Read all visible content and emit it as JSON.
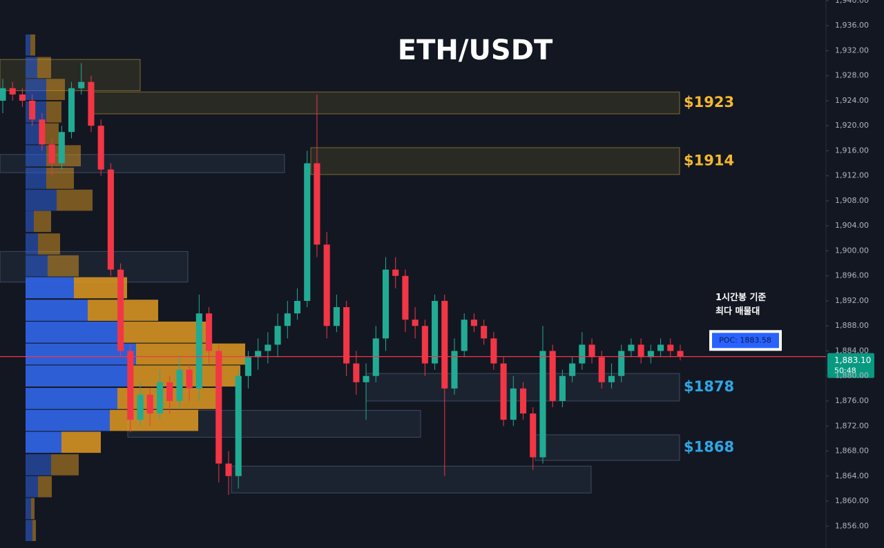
{
  "chart_data": {
    "type": "candlestick",
    "title": "ETH/USDT",
    "open": [
      1924,
      1926,
      1925,
      1924,
      1921,
      1917,
      1914,
      1919,
      1926,
      1927,
      1920,
      1913,
      1897,
      1884,
      1873,
      1877,
      1874,
      1879,
      1876,
      1881,
      1878,
      1890,
      1884,
      1866,
      1864,
      1880,
      1883,
      1884,
      1885,
      1888,
      1890,
      1892,
      1914,
      1901,
      1888,
      1891,
      1882,
      1879,
      1880,
      1886,
      1897,
      1896,
      1889,
      1888,
      1882,
      1892,
      1878,
      1884,
      1889,
      1888,
      1886,
      1882,
      1873,
      1878,
      1874,
      1867,
      1884,
      1876,
      1880,
      1882,
      1885,
      1883,
      1879,
      1880,
      1884,
      1885,
      1883,
      1884,
      1885,
      1884
    ],
    "high": [
      1927.5,
      1927,
      1926,
      1925,
      1922,
      1918,
      1920,
      1927,
      1930,
      1928,
      1921,
      1914,
      1898,
      1885,
      1879,
      1878,
      1881,
      1880,
      1883,
      1882,
      1893,
      1891,
      1885,
      1868,
      1881,
      1884,
      1886,
      1887,
      1890,
      1892,
      1894,
      1916,
      1925,
      1903,
      1893,
      1892,
      1884,
      1882,
      1888,
      1899,
      1899,
      1897,
      1891,
      1889,
      1893,
      1893,
      1886,
      1890,
      1890,
      1889,
      1887,
      1883,
      1880,
      1879,
      1875,
      1888,
      1885,
      1881,
      1883,
      1887,
      1886,
      1884,
      1882,
      1885,
      1886,
      1886,
      1885,
      1886,
      1886,
      1885
    ],
    "low": [
      1922,
      1924,
      1923,
      1920,
      1916,
      1912,
      1913,
      1918,
      1925,
      1919,
      1912,
      1896,
      1883,
      1871,
      1872,
      1872,
      1873,
      1874,
      1875,
      1876,
      1876,
      1882,
      1863,
      1861,
      1862,
      1878,
      1881,
      1882,
      1883,
      1886,
      1889,
      1891,
      1899,
      1886,
      1887,
      1880,
      1877,
      1873,
      1879,
      1884,
      1894,
      1887,
      1886,
      1880,
      1881,
      1864,
      1877,
      1883,
      1887,
      1885,
      1881,
      1872,
      1872,
      1873,
      1865,
      1866,
      1875,
      1875,
      1879,
      1881,
      1882,
      1878,
      1878,
      1879,
      1883,
      1882,
      1882,
      1883,
      1883,
      1882.5
    ],
    "close": [
      1926,
      1925,
      1924,
      1921,
      1917,
      1914,
      1919,
      1926,
      1927,
      1920,
      1913,
      1897,
      1884,
      1873,
      1877,
      1874,
      1879,
      1876,
      1881,
      1878,
      1890,
      1884,
      1866,
      1864,
      1880,
      1883,
      1884,
      1885,
      1888,
      1890,
      1892,
      1914,
      1901,
      1888,
      1891,
      1882,
      1879,
      1880,
      1886,
      1897,
      1896,
      1889,
      1888,
      1882,
      1892,
      1878,
      1884,
      1889,
      1888,
      1886,
      1882,
      1873,
      1878,
      1874,
      1867,
      1884,
      1876,
      1880,
      1882,
      1885,
      1883,
      1879,
      1880,
      1884,
      1885,
      1883,
      1884,
      1885,
      1884,
      1883.1
    ],
    "colors": {
      "up": "#22ab94",
      "down": "#f23645"
    },
    "ylim": [
      1852.5,
      1940.1
    ],
    "yticks": [
      {
        "value": 1856,
        "label": "1,856.00"
      },
      {
        "value": 1860,
        "label": "1,860.00"
      },
      {
        "value": 1864,
        "label": "1,864.00"
      },
      {
        "value": 1868,
        "label": "1,868.00"
      },
      {
        "value": 1872,
        "label": "1,872.00"
      },
      {
        "value": 1876,
        "label": "1,876.00"
      },
      {
        "value": 1880,
        "label": "1,880.00"
      },
      {
        "value": 1884,
        "label": "1,884.00"
      },
      {
        "value": 1888,
        "label": "1,888.00"
      },
      {
        "value": 1892,
        "label": "1,892.00"
      },
      {
        "value": 1896,
        "label": "1,896.00"
      },
      {
        "value": 1900,
        "label": "1,900.00"
      },
      {
        "value": 1904,
        "label": "1,904.00"
      },
      {
        "value": 1908,
        "label": "1,908.00"
      },
      {
        "value": 1912,
        "label": "1,912.00"
      },
      {
        "value": 1916,
        "label": "1,916.00"
      },
      {
        "value": 1920,
        "label": "1,920.00"
      },
      {
        "value": 1924,
        "label": "1,924.00"
      },
      {
        "value": 1928,
        "label": "1,928.00"
      },
      {
        "value": 1932,
        "label": "1,932.00"
      },
      {
        "value": 1936,
        "label": "1,936.00"
      },
      {
        "value": 1940,
        "label": "1,940.00"
      }
    ],
    "last_price": {
      "value": 1883.1,
      "label": "1,883.10",
      "color": "#089981"
    },
    "countdown": "50:48",
    "poc": {
      "value": 1883.58,
      "label": "POC: 1883.58",
      "color": "#2962ff"
    },
    "poc_note": [
      "1시간봉 기준",
      "최다 매물대"
    ],
    "zones": [
      {
        "low": 1921.9,
        "high": 1925.4,
        "label": "$1923",
        "color": "#c9a83a"
      },
      {
        "low": 1912.2,
        "high": 1916.5,
        "label": "$1914",
        "color": "#c9a83a"
      },
      {
        "low": 1876.0,
        "high": 1880.4,
        "label": "$1878",
        "color": "#5d7290"
      },
      {
        "low": 1866.5,
        "high": 1870.6,
        "label": "$1868",
        "color": "#5d7290"
      },
      {
        "low": 1925.6,
        "high": 1930.6,
        "color": "#c9a83a"
      },
      {
        "low": 1912.5,
        "high": 1915.4,
        "color": "#5d7290"
      },
      {
        "low": 1895.0,
        "high": 1899.9,
        "color": "#5d7290"
      },
      {
        "low": 1870.2,
        "high": 1874.5,
        "color": "#5d7290"
      },
      {
        "low": 1861.3,
        "high": 1865.6,
        "color": "#5d7290"
      }
    ],
    "volume_profile": {
      "levels": [
        1932.9,
        1929.3,
        1925.8,
        1922.2,
        1918.7,
        1915.2,
        1911.6,
        1908.1,
        1904.7,
        1901.1,
        1897.6,
        1894.1,
        1890.5,
        1887.0,
        1883.5,
        1880.0,
        1876.4,
        1872.9,
        1869.4,
        1865.8,
        1862.3,
        1858.8,
        1855.3
      ],
      "buy": [
        7,
        17,
        30,
        30,
        28,
        30,
        30,
        45,
        12,
        18,
        32,
        70,
        90,
        133,
        160,
        153,
        133,
        122,
        52,
        37,
        18,
        8,
        10
      ],
      "sell": [
        7,
        20,
        27,
        22,
        20,
        50,
        40,
        52,
        25,
        32,
        45,
        77,
        102,
        135,
        158,
        158,
        148,
        128,
        57,
        40,
        20,
        5,
        5
      ],
      "buy_color": "#2f62e0",
      "sell_color": "#e09a22"
    }
  }
}
